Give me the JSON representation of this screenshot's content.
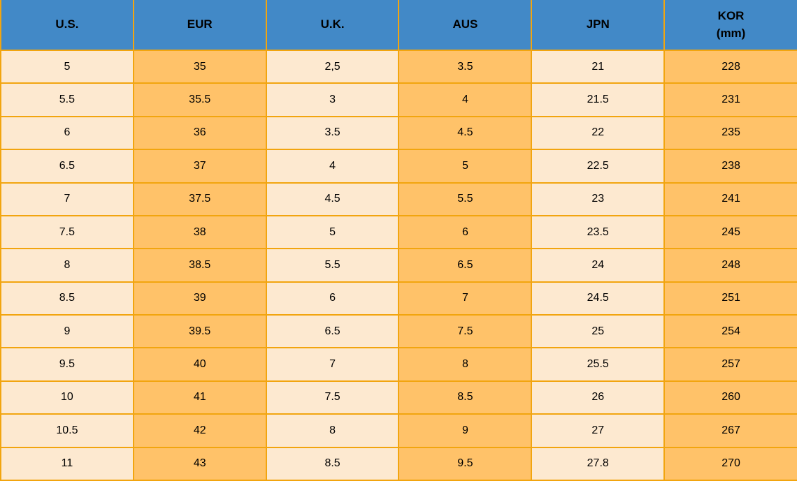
{
  "colors": {
    "header_bg": "#4289C7",
    "cream_cell": "#FDE9D0",
    "orange_cell": "#FFC269",
    "grid_border": "#F2A50F",
    "text": "#000000"
  },
  "table": {
    "columns": [
      {
        "key": "us",
        "label": "U.S.",
        "sublabel": "",
        "fill": "cream"
      },
      {
        "key": "eur",
        "label": "EUR",
        "sublabel": "",
        "fill": "orange"
      },
      {
        "key": "uk",
        "label": "U.K.",
        "sublabel": "",
        "fill": "cream"
      },
      {
        "key": "aus",
        "label": "AUS",
        "sublabel": "",
        "fill": "orange"
      },
      {
        "key": "jpn",
        "label": "JPN",
        "sublabel": "",
        "fill": "cream"
      },
      {
        "key": "kor",
        "label": "KOR",
        "sublabel": "(mm)",
        "fill": "orange"
      }
    ],
    "rows": [
      [
        "5",
        "35",
        "2,5",
        "3.5",
        "21",
        "228"
      ],
      [
        "5.5",
        "35.5",
        "3",
        "4",
        "21.5",
        "231"
      ],
      [
        "6",
        "36",
        "3.5",
        "4.5",
        "22",
        "235"
      ],
      [
        "6.5",
        "37",
        "4",
        "5",
        "22.5",
        "238"
      ],
      [
        "7",
        "37.5",
        "4.5",
        "5.5",
        "23",
        "241"
      ],
      [
        "7.5",
        "38",
        "5",
        "6",
        "23.5",
        "245"
      ],
      [
        "8",
        "38.5",
        "5.5",
        "6.5",
        "24",
        "248"
      ],
      [
        "8.5",
        "39",
        "6",
        "7",
        "24.5",
        "251"
      ],
      [
        "9",
        "39.5",
        "6.5",
        "7.5",
        "25",
        "254"
      ],
      [
        "9.5",
        "40",
        "7",
        "8",
        "25.5",
        "257"
      ],
      [
        "10",
        "41",
        "7.5",
        "8.5",
        "26",
        "260"
      ],
      [
        "10.5",
        "42",
        "8",
        "9",
        "27",
        "267"
      ],
      [
        "11",
        "43",
        "8.5",
        "9.5",
        "27.8",
        "270"
      ]
    ]
  },
  "chart_data": {
    "type": "table",
    "title": "",
    "columns": [
      "U.S.",
      "EUR",
      "U.K.",
      "AUS",
      "JPN",
      "KOR (mm)"
    ],
    "rows": [
      [
        "5",
        "35",
        "2,5",
        "3.5",
        "21",
        "228"
      ],
      [
        "5.5",
        "35.5",
        "3",
        "4",
        "21.5",
        "231"
      ],
      [
        "6",
        "36",
        "3.5",
        "4.5",
        "22",
        "235"
      ],
      [
        "6.5",
        "37",
        "4",
        "5",
        "22.5",
        "238"
      ],
      [
        "7",
        "37.5",
        "4.5",
        "5.5",
        "23",
        "241"
      ],
      [
        "7.5",
        "38",
        "5",
        "6",
        "23.5",
        "245"
      ],
      [
        "8",
        "38.5",
        "5.5",
        "6.5",
        "24",
        "248"
      ],
      [
        "8.5",
        "39",
        "6",
        "7",
        "24.5",
        "251"
      ],
      [
        "9",
        "39.5",
        "6.5",
        "7.5",
        "25",
        "254"
      ],
      [
        "9.5",
        "40",
        "7",
        "8",
        "25.5",
        "257"
      ],
      [
        "10",
        "41",
        "7.5",
        "8.5",
        "26",
        "260"
      ],
      [
        "10.5",
        "42",
        "8",
        "9",
        "27",
        "267"
      ],
      [
        "11",
        "43",
        "8.5",
        "9.5",
        "27.8",
        "270"
      ]
    ]
  }
}
